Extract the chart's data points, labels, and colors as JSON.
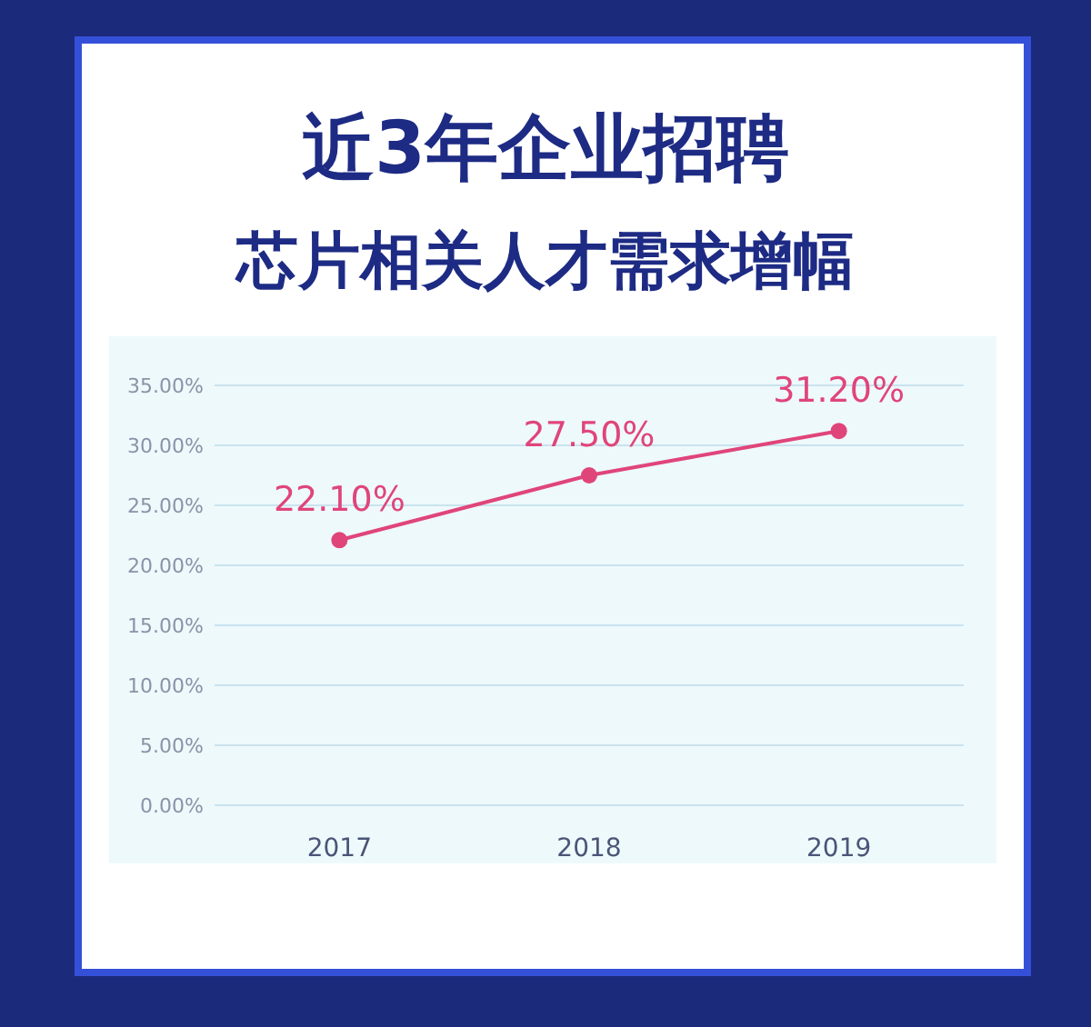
{
  "chart_data": {
    "type": "line",
    "title": "近3年企业招聘",
    "subtitle": "芯片相关人才需求增幅",
    "categories": [
      "2017",
      "2018",
      "2019"
    ],
    "series": [
      {
        "color": "#e0457a",
        "values": [
          22.1,
          27.5,
          31.2
        ],
        "value_labels": [
          "22.10%",
          "27.50%",
          "31.20%"
        ]
      }
    ],
    "ylim": [
      0,
      35
    ],
    "yticks": [
      {
        "value": 0,
        "label": "0.00%"
      },
      {
        "value": 5,
        "label": "5.00%"
      },
      {
        "value": 10,
        "label": "10.00%"
      },
      {
        "value": 15,
        "label": "15.00%"
      },
      {
        "value": 20,
        "label": "20.00%"
      },
      {
        "value": 25,
        "label": "25.00%"
      },
      {
        "value": 30,
        "label": "30.00%"
      },
      {
        "value": 35,
        "label": "35.00%"
      }
    ],
    "grid": "y",
    "marker": "circle"
  }
}
